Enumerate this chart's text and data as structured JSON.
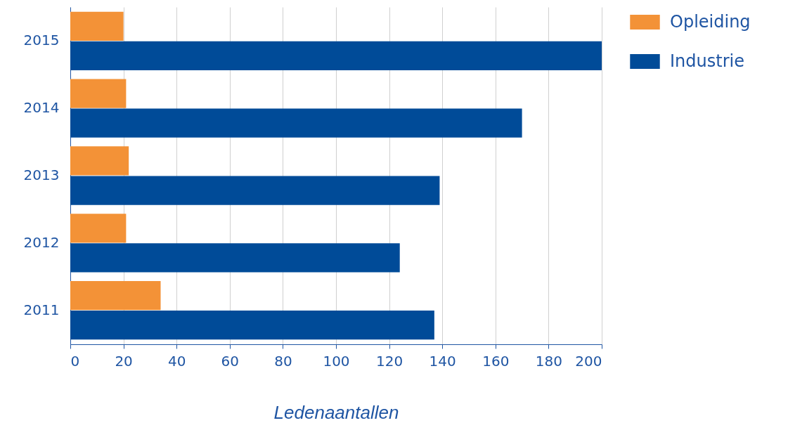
{
  "chart_data": {
    "type": "bar",
    "orientation": "horizontal",
    "xlabel": "Ledenaantallen",
    "categories": [
      "2015",
      "2014",
      "2013",
      "2012",
      "2011"
    ],
    "series": [
      {
        "name": "Opleiding",
        "color": "#f39237",
        "values": [
          20,
          21,
          22,
          21,
          34
        ]
      },
      {
        "name": "Industrie",
        "color": "#004b98",
        "values": [
          200,
          170,
          139,
          124,
          137
        ]
      }
    ],
    "xlim": [
      0,
      200
    ],
    "xticks": [
      0,
      20,
      40,
      60,
      80,
      100,
      120,
      140,
      160,
      180,
      200
    ],
    "grid": "x",
    "legend": "right"
  }
}
